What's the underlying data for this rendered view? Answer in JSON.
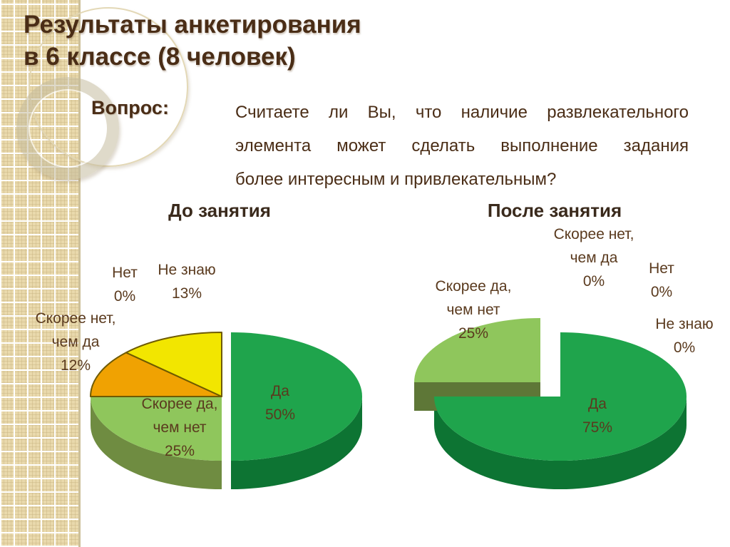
{
  "slide": {
    "title_line1": "Результаты анкетирования",
    "title_line2": "в 6 классе (8 человек)",
    "question_label": "Вопрос:",
    "question_lines": [
      "Считаете ли Вы, что наличие развлекательного",
      "элемента может сделать выполнение задания",
      "более интересным и привлекательным?"
    ]
  },
  "colors": {
    "title_text": "#4a2d16",
    "label_text": "#5a3a1e",
    "strip_base": "#e9d9ac",
    "strip_grid": "#ffffff",
    "slice_outline": "#6e5a00",
    "background": "#ffffff"
  },
  "chart_data": [
    {
      "type": "pie",
      "title": "До занятия",
      "unit": "%",
      "legend_position": "none",
      "slices": [
        {
          "label": "Да",
          "value": 50,
          "color": "#1fa44c",
          "side_color": "#0d7433"
        },
        {
          "label": "Скорее да, чем нет",
          "value": 25,
          "color": "#8fc65c",
          "side_color": "#6f8c41"
        },
        {
          "label": "Скорее нет, чем да",
          "value": 12,
          "color": "#f0a202",
          "side_color": "#bd7f02"
        },
        {
          "label": "Не знаю",
          "value": 13,
          "color": "#f2e600",
          "side_color": "#bdb400"
        },
        {
          "label": "Нет",
          "value": 0,
          "color": "#f2e600",
          "side_color": "#bdb400"
        }
      ]
    },
    {
      "type": "pie",
      "title": "После занятия",
      "unit": "%",
      "legend_position": "none",
      "slices": [
        {
          "label": "Да",
          "value": 75,
          "color": "#1fa44c",
          "side_color": "#0d7433"
        },
        {
          "label": "Скорее да, чем нет",
          "value": 25,
          "color": "#8fc65c",
          "side_color": "#6f8c41"
        },
        {
          "label": "Скорее нет, чем да",
          "value": 0,
          "color": "#f0a202",
          "side_color": "#bd7f02"
        },
        {
          "label": "Нет",
          "value": 0,
          "color": "#f2e600",
          "side_color": "#bdb400"
        },
        {
          "label": "Не знаю",
          "value": 0,
          "color": "#ffffff",
          "side_color": "#ffffff"
        }
      ]
    }
  ]
}
